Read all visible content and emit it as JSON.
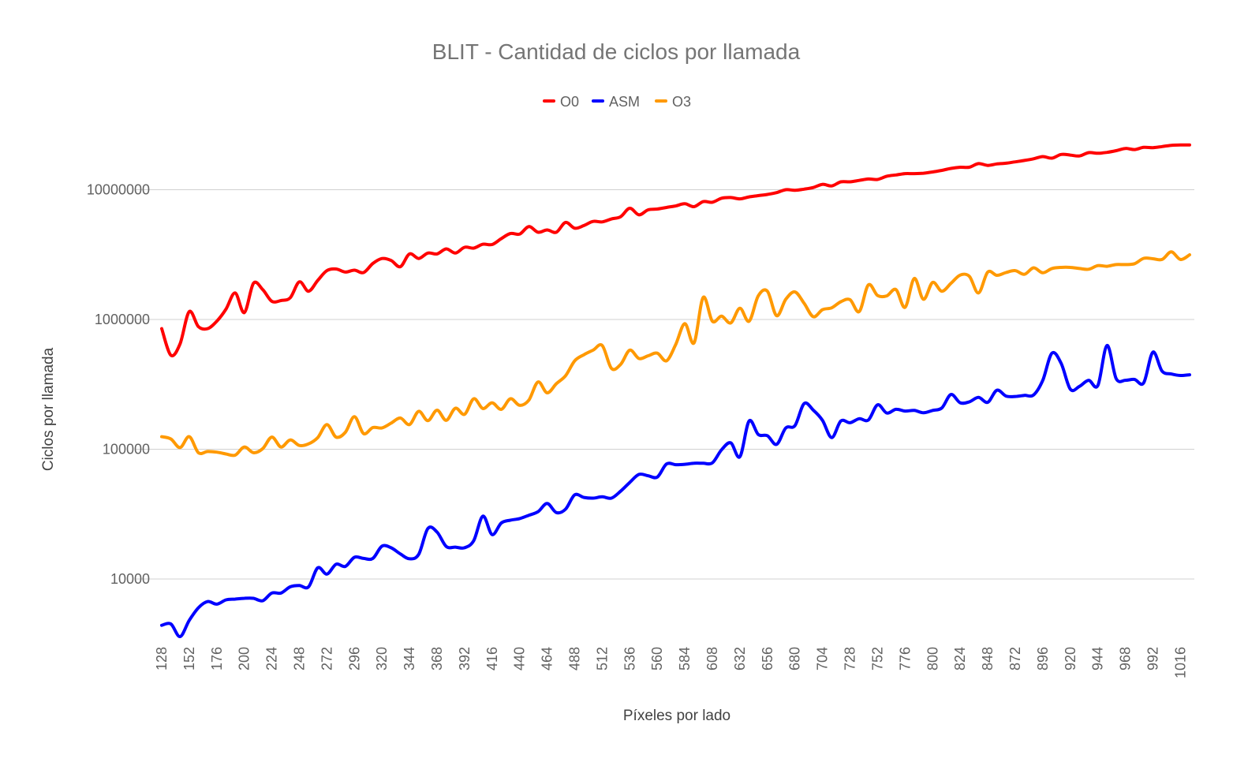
{
  "chart_data": {
    "type": "line",
    "title": "BLIT - Cantidad de ciclos por llamada",
    "xlabel": "Píxeles por lado",
    "ylabel": "Ciclos por llamada",
    "y_scale": "log",
    "ylim": [
      3500,
      30000000
    ],
    "y_ticks": [
      "10000",
      "100000",
      "1000000",
      "10000000"
    ],
    "grid": true,
    "legend_position": "top",
    "x": [
      128,
      136,
      144,
      152,
      160,
      168,
      176,
      184,
      192,
      200,
      208,
      216,
      224,
      232,
      240,
      248,
      256,
      264,
      272,
      280,
      288,
      296,
      304,
      312,
      320,
      328,
      336,
      344,
      352,
      360,
      368,
      376,
      384,
      392,
      400,
      408,
      416,
      424,
      432,
      440,
      448,
      456,
      464,
      472,
      480,
      488,
      496,
      504,
      512,
      520,
      528,
      536,
      544,
      552,
      560,
      568,
      576,
      584,
      592,
      600,
      608,
      616,
      624,
      632,
      640,
      648,
      656,
      664,
      672,
      680,
      688,
      696,
      704,
      712,
      720,
      728,
      736,
      744,
      752,
      760,
      768,
      776,
      784,
      792,
      800,
      808,
      816,
      824,
      832,
      840,
      848,
      856,
      864,
      872,
      880,
      888,
      896,
      904,
      912,
      920,
      928,
      936,
      944,
      952,
      960,
      968,
      976,
      984,
      992,
      1000,
      1008,
      1016,
      1024
    ],
    "x_tick_labels": [
      "128",
      "152",
      "176",
      "200",
      "224",
      "248",
      "272",
      "296",
      "320",
      "344",
      "368",
      "392",
      "416",
      "440",
      "464",
      "488",
      "512",
      "536",
      "560",
      "584",
      "608",
      "632",
      "656",
      "680",
      "704",
      "728",
      "752",
      "776",
      "800",
      "824",
      "848",
      "872",
      "896",
      "920",
      "944",
      "968",
      "992",
      "1016"
    ],
    "series": [
      {
        "name": "O0",
        "color": "#ff0000",
        "values": [
          850000,
          530000,
          650000,
          1150000,
          880000,
          850000,
          970000,
          1200000,
          1600000,
          1130000,
          1900000,
          1700000,
          1380000,
          1400000,
          1470000,
          1950000,
          1650000,
          2000000,
          2380000,
          2450000,
          2320000,
          2400000,
          2300000,
          2700000,
          2950000,
          2850000,
          2550000,
          3200000,
          2950000,
          3250000,
          3200000,
          3500000,
          3250000,
          3600000,
          3550000,
          3800000,
          3780000,
          4200000,
          4600000,
          4550000,
          5200000,
          4700000,
          4900000,
          4700000,
          5600000,
          5050000,
          5300000,
          5700000,
          5650000,
          5950000,
          6200000,
          7200000,
          6400000,
          7000000,
          7100000,
          7300000,
          7500000,
          7800000,
          7400000,
          8100000,
          8000000,
          8600000,
          8700000,
          8500000,
          8800000,
          9000000,
          9200000,
          9500000,
          10000000,
          9900000,
          10100000,
          10400000,
          11000000,
          10700000,
          11500000,
          11500000,
          11800000,
          12100000,
          12000000,
          12700000,
          13000000,
          13300000,
          13300000,
          13400000,
          13700000,
          14100000,
          14600000,
          14900000,
          14900000,
          15900000,
          15400000,
          15800000,
          16000000,
          16400000,
          16800000,
          17300000,
          18000000,
          17500000,
          18700000,
          18500000,
          18200000,
          19300000,
          19100000,
          19400000,
          20000000,
          20800000,
          20400000,
          21200000,
          21100000,
          21500000,
          22000000,
          22100000,
          22100000
        ]
      },
      {
        "name": "ASM",
        "color": "#0000ff",
        "values": [
          4400,
          4500,
          3600,
          4800,
          6000,
          6700,
          6400,
          6900,
          7000,
          7100,
          7100,
          6800,
          7800,
          7800,
          8700,
          8900,
          8700,
          12200,
          10900,
          13000,
          12500,
          14700,
          14400,
          14400,
          17900,
          17400,
          15600,
          14300,
          15500,
          24500,
          23000,
          17800,
          17600,
          17400,
          19800,
          30500,
          22000,
          27000,
          28400,
          29200,
          31000,
          33000,
          38200,
          32500,
          34500,
          44500,
          42500,
          42000,
          43000,
          42000,
          47500,
          55500,
          64000,
          62500,
          61000,
          77000,
          76000,
          76500,
          78000,
          78000,
          78500,
          99000,
          112000,
          87500,
          165000,
          130000,
          127000,
          109000,
          146000,
          152000,
          225000,
          200000,
          167000,
          123000,
          165000,
          160000,
          172000,
          168000,
          220000,
          190000,
          203000,
          197000,
          199000,
          191000,
          199000,
          208000,
          264000,
          228000,
          232000,
          251000,
          230000,
          285000,
          257000,
          255000,
          260000,
          262000,
          340000,
          550000,
          460000,
          290000,
          305000,
          340000,
          310000,
          630000,
          350000,
          340000,
          345000,
          325000,
          560000,
          400000,
          380000,
          370000,
          375000
        ]
      },
      {
        "name": "O3",
        "color": "#ff9900",
        "values": [
          125000,
          120000,
          103000,
          125000,
          94000,
          96000,
          95000,
          92000,
          90000,
          104000,
          94000,
          101000,
          124000,
          104000,
          118000,
          107000,
          110000,
          123000,
          155000,
          124000,
          135000,
          178000,
          132000,
          147000,
          146000,
          159000,
          174000,
          155000,
          196000,
          166000,
          200000,
          167000,
          207000,
          186000,
          245000,
          206000,
          228000,
          203000,
          245000,
          218000,
          239000,
          330000,
          272000,
          320000,
          368000,
          480000,
          535000,
          580000,
          630000,
          420000,
          450000,
          580000,
          500000,
          525000,
          550000,
          480000,
          640000,
          930000,
          660000,
          1480000,
          970000,
          1060000,
          940000,
          1220000,
          970000,
          1520000,
          1650000,
          1070000,
          1430000,
          1630000,
          1330000,
          1050000,
          1190000,
          1230000,
          1370000,
          1420000,
          1150000,
          1850000,
          1530000,
          1520000,
          1700000,
          1240000,
          2070000,
          1430000,
          1930000,
          1650000,
          1900000,
          2200000,
          2150000,
          1600000,
          2320000,
          2190000,
          2300000,
          2380000,
          2230000,
          2500000,
          2290000,
          2470000,
          2520000,
          2520000,
          2470000,
          2440000,
          2600000,
          2570000,
          2650000,
          2650000,
          2690000,
          2960000,
          2940000,
          2900000,
          3320000,
          2900000,
          3150000
        ]
      }
    ]
  }
}
